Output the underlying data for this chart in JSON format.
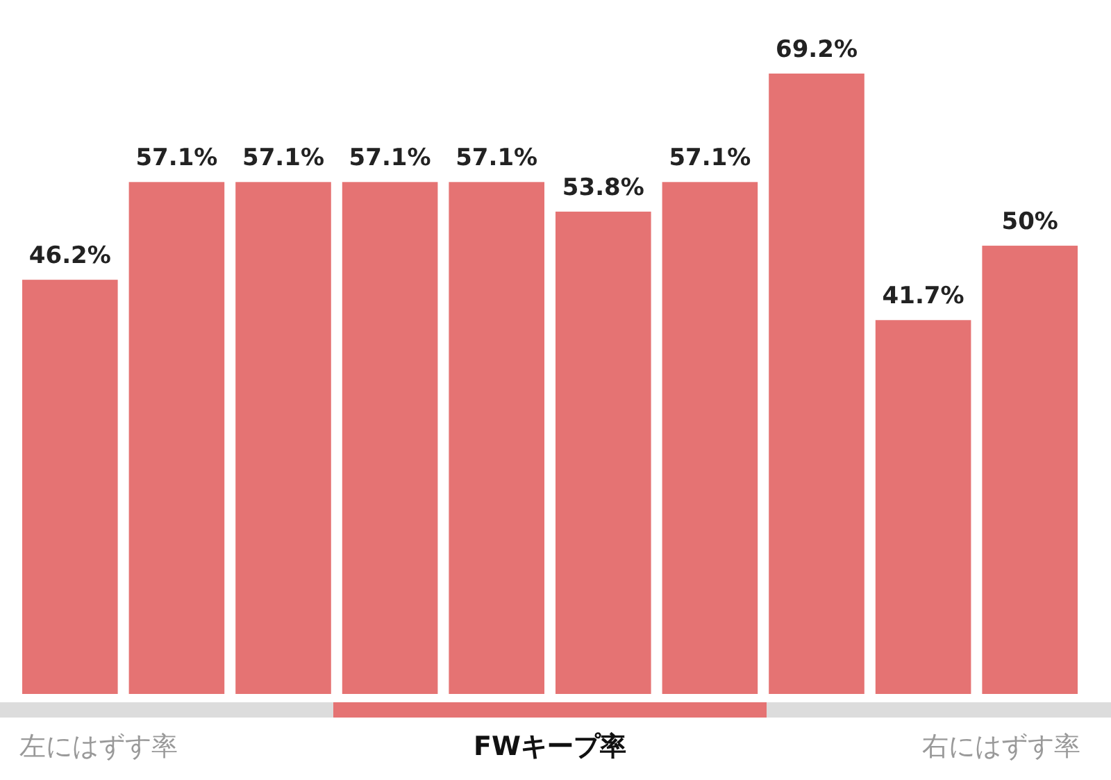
{
  "chart_data": {
    "type": "bar",
    "title": "FWキープ率",
    "categories": [
      null,
      null,
      null,
      null,
      null,
      null,
      null,
      null,
      null,
      null
    ],
    "values": [
      46.2,
      57.1,
      57.1,
      57.1,
      57.1,
      53.8,
      57.1,
      69.2,
      41.7,
      50
    ],
    "value_labels": [
      "46.2%",
      "57.1%",
      "57.1%",
      "57.1%",
      "57.1%",
      "53.8%",
      "57.1%",
      "69.2%",
      "41.7%",
      "50%"
    ],
    "color": "#e57373",
    "annotations": [
      "左にはずす率",
      "右にはずす率"
    ]
  }
}
